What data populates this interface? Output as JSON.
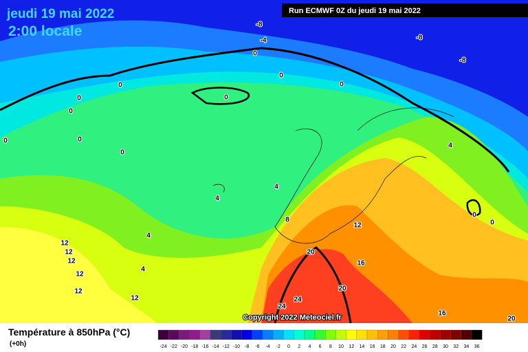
{
  "header": {
    "date": "jeudi 19 mai 2022",
    "time": "2:00 locale",
    "run": "Run ECMWF 0Z du jeudi 19 mai 2022"
  },
  "map": {
    "copyright": "Copyright 2022 Meteociel.fr",
    "contour_labels": [
      -8,
      -4,
      0,
      -8,
      -8,
      0,
      0,
      0,
      0,
      0,
      0,
      0,
      0,
      0,
      4,
      4,
      4,
      8,
      12,
      4,
      12,
      12,
      12,
      12,
      4,
      20,
      16,
      12,
      12,
      20,
      24,
      24,
      16,
      20,
      0,
      0
    ]
  },
  "legend": {
    "title": "Température à 850hPa (°C)",
    "step": "(+0h)",
    "ticks": [
      -24,
      -22,
      -20,
      -18,
      -16,
      -14,
      -12,
      -10,
      -8,
      -6,
      -4,
      -2,
      0,
      2,
      4,
      6,
      8,
      10,
      12,
      14,
      16,
      18,
      20,
      22,
      24,
      26,
      28,
      30,
      32,
      34,
      36
    ],
    "colors": [
      "#3a003a",
      "#5a0a5a",
      "#7a1a7a",
      "#901a90",
      "#a040a0",
      "#3a3a7a",
      "#2a2a9a",
      "#1010b0",
      "#0000e0",
      "#0040ff",
      "#0080ff",
      "#00b0ff",
      "#00e0ff",
      "#00ffd0",
      "#00ff90",
      "#30ff30",
      "#80ff00",
      "#c0ff00",
      "#ffff00",
      "#ffe000",
      "#ffc000",
      "#ffa000",
      "#ff8000",
      "#ff5000",
      "#ff2000",
      "#e00000",
      "#c00000",
      "#a00000",
      "#800000",
      "#500000",
      "#000000"
    ]
  }
}
